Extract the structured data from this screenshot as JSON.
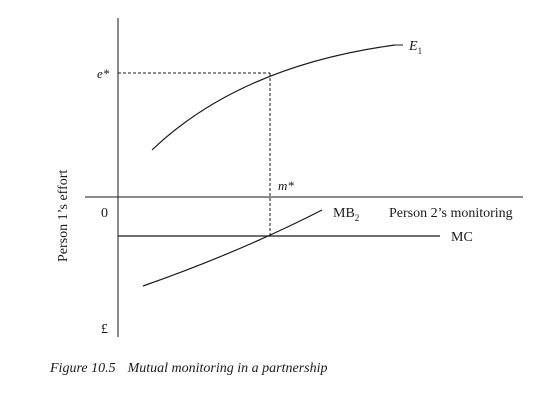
{
  "figure": {
    "number": "Figure 10.5",
    "caption": "Mutual monitoring in a partnership"
  },
  "axes": {
    "y_label": "Person 1’s effort",
    "x_label": "Person 2’s monitoring",
    "origin_label": "0",
    "y_top_label": "e*",
    "y_bottom_label": "£",
    "x_point_label": "m*"
  },
  "curves": {
    "effort": {
      "name": "E",
      "subscript": "1"
    },
    "benefit": {
      "name": "MB",
      "subscript": "2"
    },
    "cost": {
      "name": "MC"
    }
  }
}
